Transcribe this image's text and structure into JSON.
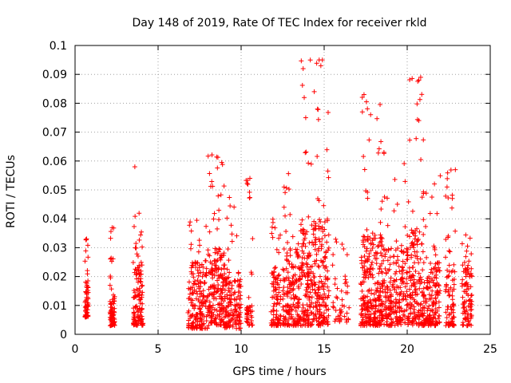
{
  "chart_data": {
    "type": "scatter",
    "title": "Day 148 of 2019, Rate Of TEC Index for receiver rkld",
    "xlabel": "GPS time / hours",
    "ylabel": "ROTI / TECUs",
    "xlim": [
      0,
      25
    ],
    "ylim": [
      0,
      0.1
    ],
    "grid": true,
    "legend": "none",
    "marker": "+",
    "color": "#ff0000",
    "x_ticks": [
      {
        "value": 0,
        "label": "0"
      },
      {
        "value": 5,
        "label": "5"
      },
      {
        "value": 10,
        "label": "10"
      },
      {
        "value": 15,
        "label": "15"
      },
      {
        "value": 20,
        "label": "20"
      },
      {
        "value": 25,
        "label": "25"
      }
    ],
    "y_ticks": [
      {
        "value": 0,
        "label": "0"
      },
      {
        "value": 0.01,
        "label": "0.01"
      },
      {
        "value": 0.02,
        "label": "0.02"
      },
      {
        "value": 0.03,
        "label": "0.03"
      },
      {
        "value": 0.04,
        "label": "0.04"
      },
      {
        "value": 0.05,
        "label": "0.05"
      },
      {
        "value": 0.06,
        "label": "0.06"
      },
      {
        "value": 0.07,
        "label": "0.07"
      },
      {
        "value": 0.08,
        "label": "0.08"
      },
      {
        "value": 0.09,
        "label": "0.09"
      },
      {
        "value": 0.1,
        "label": "0.1"
      }
    ],
    "clusters": [
      {
        "x": [
          0.6,
          0.8
        ],
        "y_min": 0.006,
        "y_max": 0.017,
        "extra_y": [
          0.021,
          0.029,
          0.034
        ],
        "points": 55
      },
      {
        "x": [
          2.1,
          2.4
        ],
        "y_min": 0.003,
        "y_max": 0.014,
        "extra_y": [
          0.022,
          0.03,
          0.037
        ],
        "points": 65
      },
      {
        "x": [
          3.5,
          4.1
        ],
        "y_min": 0.003,
        "y_max": 0.025,
        "extra_y": [
          0.03,
          0.035,
          0.043
        ],
        "points": 110
      },
      {
        "x": [
          6.8,
          8.0
        ],
        "y_min": 0.002,
        "y_max": 0.025,
        "extra_y": [
          0.03,
          0.036,
          0.04
        ],
        "points": 170
      },
      {
        "x": [
          8.0,
          9.0
        ],
        "y_min": 0.003,
        "y_max": 0.03,
        "extra_y": [
          0.04,
          0.05,
          0.055,
          0.06,
          0.063
        ],
        "points": 170
      },
      {
        "x": [
          9.0,
          10.0
        ],
        "y_min": 0.002,
        "y_max": 0.022,
        "extra_y": [
          0.03,
          0.04,
          0.048
        ],
        "points": 140
      },
      {
        "x": [
          10.3,
          10.7
        ],
        "y_min": 0.003,
        "y_max": 0.01,
        "extra_y": [
          0.045,
          0.052,
          0.055
        ],
        "points": 35
      },
      {
        "x": [
          11.8,
          12.4
        ],
        "y_min": 0.003,
        "y_max": 0.022,
        "extra_y": [
          0.03,
          0.035,
          0.04
        ],
        "points": 80
      },
      {
        "x": [
          12.5,
          13.5
        ],
        "y_min": 0.003,
        "y_max": 0.03,
        "extra_y": [
          0.04,
          0.05,
          0.057
        ],
        "points": 160
      },
      {
        "x": [
          13.5,
          15.3
        ],
        "y_min": 0.003,
        "y_max": 0.04,
        "extra_y": [
          0.05,
          0.06,
          0.066,
          0.078,
          0.092,
          0.095
        ],
        "points": 300
      },
      {
        "x": [
          15.5,
          16.5
        ],
        "y_min": 0.004,
        "y_max": 0.02,
        "extra_y": [
          0.028,
          0.033
        ],
        "points": 40
      },
      {
        "x": [
          17.2,
          18.5
        ],
        "y_min": 0.003,
        "y_max": 0.035,
        "extra_y": [
          0.045,
          0.05,
          0.065,
          0.078,
          0.083
        ],
        "points": 260
      },
      {
        "x": [
          18.5,
          20.0
        ],
        "y_min": 0.003,
        "y_max": 0.03,
        "extra_y": [
          0.04,
          0.052,
          0.063
        ],
        "points": 200
      },
      {
        "x": [
          20.0,
          21.0
        ],
        "y_min": 0.003,
        "y_max": 0.036,
        "extra_y": [
          0.045,
          0.05,
          0.074,
          0.087,
          0.089
        ],
        "points": 160
      },
      {
        "x": [
          21.0,
          22.0
        ],
        "y_min": 0.003,
        "y_max": 0.025,
        "extra_y": [
          0.03,
          0.045,
          0.055
        ],
        "points": 150
      },
      {
        "x": [
          22.3,
          22.9
        ],
        "y_min": 0.003,
        "y_max": 0.025,
        "extra_y": [
          0.033,
          0.046,
          0.05,
          0.057
        ],
        "points": 70
      },
      {
        "x": [
          23.3,
          23.9
        ],
        "y_min": 0.003,
        "y_max": 0.025,
        "extra_y": [
          0.03,
          0.035
        ],
        "points": 90
      }
    ],
    "notable_points": [
      {
        "x": 3.6,
        "y": 0.058
      },
      {
        "x": 14.7,
        "y": 0.095
      },
      {
        "x": 14.8,
        "y": 0.093
      },
      {
        "x": 14.6,
        "y": 0.078
      },
      {
        "x": 17.4,
        "y": 0.083
      },
      {
        "x": 17.3,
        "y": 0.077
      },
      {
        "x": 18.6,
        "y": 0.063
      },
      {
        "x": 20.7,
        "y": 0.088
      },
      {
        "x": 20.7,
        "y": 0.074
      },
      {
        "x": 22.9,
        "y": 0.057
      }
    ]
  }
}
